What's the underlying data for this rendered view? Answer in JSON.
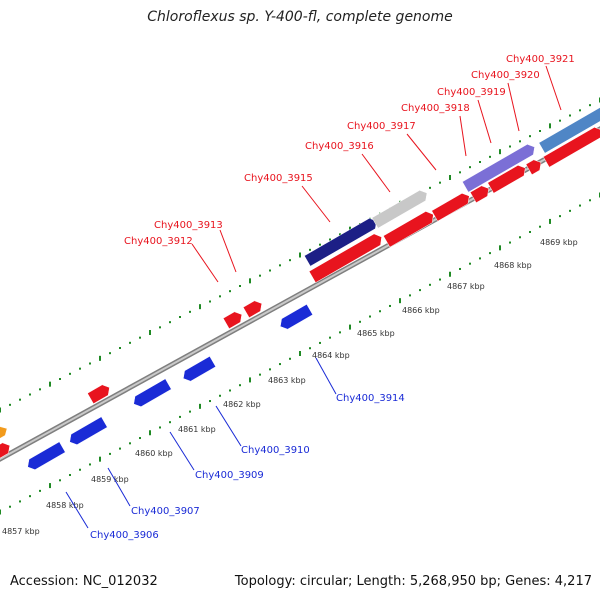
{
  "title": "Chloroflexus sp. Y-400-fl, complete genome",
  "footer": {
    "accession": "Accession: NC_012032",
    "stats": "Topology: circular; Length: 5,268,950 bp; Genes: 4,217"
  },
  "colors": {
    "forward_gene": "#e8141e",
    "reverse_gene": "#1a2bd6",
    "label_forward": "#e8141e",
    "label_reverse": "#1a2bd6",
    "tick": "#1f8a24",
    "backbone": "#9a9a9a",
    "trna_navy": "#1c1f86",
    "rrna_grey": "#c8c8c8",
    "rrna_purple": "#7b6fd6",
    "rrna_steel": "#4f86c6",
    "orange": "#f29b1c"
  },
  "scale_labels": [
    "4857 kbp",
    "4858 kbp",
    "4859 kbp",
    "4860 kbp",
    "4861 kbp",
    "4862 kbp",
    "4863 kbp",
    "4864 kbp",
    "4865 kbp",
    "4866 kbp",
    "4867 kbp",
    "4868 kbp",
    "4869 kbp"
  ],
  "gene_labels_forward": [
    "Chy400_3912",
    "Chy400_3913",
    "Chy400_3915",
    "Chy400_3916",
    "Chy400_3917",
    "Chy400_3918",
    "Chy400_3919",
    "Chy400_3920",
    "Chy400_3921"
  ],
  "gene_labels_reverse": [
    "Chy400_3906",
    "Chy400_3907",
    "Chy400_3909",
    "Chy400_3910",
    "Chy400_3914"
  ]
}
